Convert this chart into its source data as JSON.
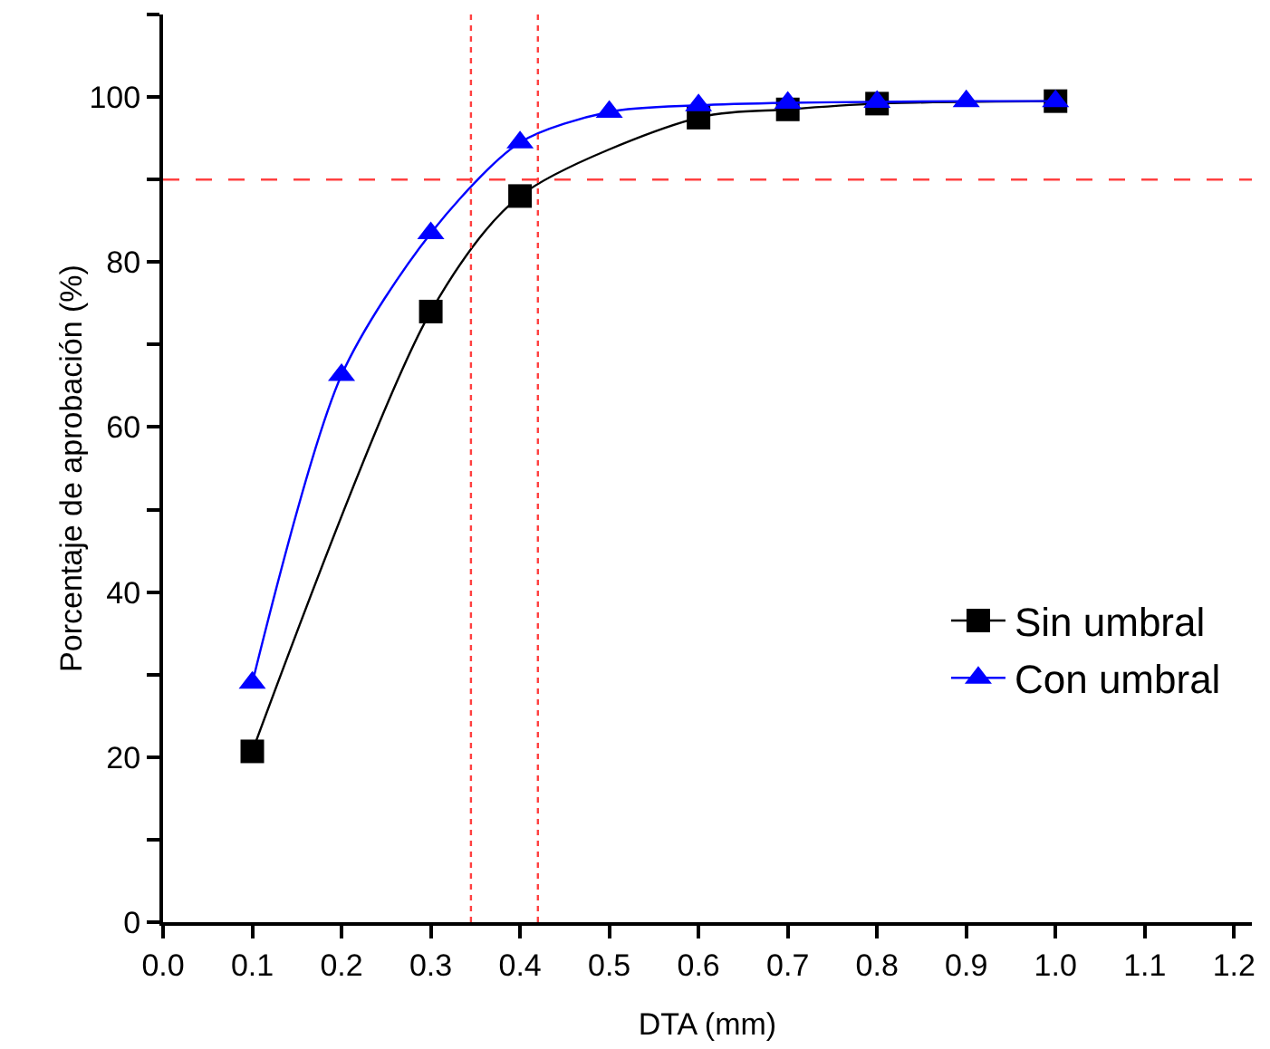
{
  "chart_data": {
    "type": "line",
    "xlabel": "DTA (mm)",
    "ylabel": "Porcentaje de aprobación (%)",
    "xlim": [
      0,
      1.22
    ],
    "xticks": [
      {
        "value": 0,
        "label": "0.0"
      },
      {
        "value": 0.1,
        "label": "0.1"
      },
      {
        "value": 0.2,
        "label": "0.2"
      },
      {
        "value": 0.3,
        "label": "0.3"
      },
      {
        "value": 0.4,
        "label": "0.4"
      },
      {
        "value": 0.5,
        "label": "0.5"
      },
      {
        "value": 0.6,
        "label": "0.6"
      },
      {
        "value": 0.7,
        "label": "0.7"
      },
      {
        "value": 0.8,
        "label": "0.8"
      },
      {
        "value": 0.9,
        "label": "0.9"
      },
      {
        "value": 1,
        "label": "1.0"
      },
      {
        "value": 1.1,
        "label": "1.1"
      },
      {
        "value": 1.2,
        "label": "1.2"
      }
    ],
    "ylim": [
      0,
      110
    ],
    "yticks": [
      0,
      {
        "value": 10,
        "label": null
      },
      20,
      {
        "value": 30,
        "label": null
      },
      40,
      {
        "value": 50,
        "label": null
      },
      60,
      {
        "value": 70,
        "label": null
      },
      80,
      {
        "value": 90,
        "label": null
      },
      100,
      {
        "value": 110,
        "label": null
      }
    ],
    "grid": false,
    "legend": "right",
    "line_style": "solid",
    "series": [
      {
        "name": "Sin umbral",
        "color": "#000000",
        "marker": "square",
        "x": [
          0.1,
          0.3,
          0.4,
          0.6,
          0.7,
          0.8,
          1.0
        ],
        "values": [
          20.7,
          74,
          88,
          97.5,
          98.5,
          99.2,
          99.5
        ]
      },
      {
        "name": "Con umbral",
        "color": "#0000ff",
        "marker": "triangle",
        "x": [
          0.1,
          0.2,
          0.3,
          0.4,
          0.5,
          0.6,
          0.7,
          0.8,
          0.9,
          1.0
        ],
        "values": [
          29,
          66.3,
          83.5,
          94.5,
          98.2,
          99,
          99.3,
          99.4,
          99.5,
          99.5
        ]
      }
    ],
    "ref_lines": [
      {
        "axis": "y",
        "value": 90,
        "color": "#ff4040",
        "line_style": "dashed"
      },
      {
        "axis": "x",
        "value": 0.345,
        "color": "#ff4040",
        "line_style": "dotted"
      },
      {
        "axis": "x",
        "value": 0.42,
        "color": "#ff4040",
        "line_style": "dotted"
      }
    ]
  }
}
